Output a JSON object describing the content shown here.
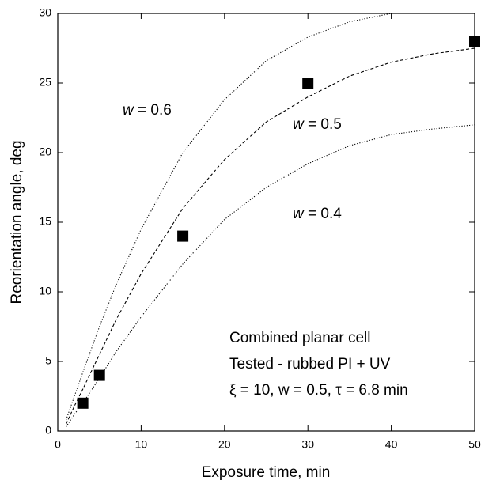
{
  "chart_data": {
    "type": "scatter",
    "x_label": "Exposure time, min",
    "y_label": "Reorientation angle, deg",
    "x": [
      3,
      5,
      15,
      30,
      50
    ],
    "values": [
      2,
      4,
      14,
      25,
      28
    ],
    "color": "#000000",
    "xlim": [
      0,
      50
    ],
    "ylim": [
      0,
      30
    ],
    "xticks": [
      0,
      10,
      20,
      30,
      40,
      50
    ],
    "yticks": [
      0,
      5,
      10,
      15,
      20,
      25,
      30
    ],
    "curves": [
      {
        "name": "w = 0.6",
        "style": "dotted",
        "x": [
          1,
          2,
          3,
          5,
          7,
          10,
          15,
          20,
          25,
          30,
          35,
          40
        ],
        "values": [
          0.8,
          2.5,
          4.2,
          7.5,
          10.5,
          14.5,
          20,
          23.8,
          26.6,
          28.3,
          29.4,
          30
        ]
      },
      {
        "name": "w = 0.5",
        "style": "dashed",
        "x": [
          1,
          2,
          3,
          5,
          7,
          10,
          15,
          20,
          25,
          30,
          35,
          40,
          45,
          50
        ],
        "values": [
          0.5,
          1.8,
          3.0,
          5.5,
          8,
          11.3,
          16,
          19.5,
          22.2,
          24,
          25.5,
          26.5,
          27.1,
          27.5
        ]
      },
      {
        "name": "w = 0.4",
        "style": "dotted",
        "x": [
          1,
          2,
          3,
          5,
          7,
          10,
          15,
          20,
          25,
          30,
          35,
          40,
          45,
          50
        ],
        "values": [
          0.3,
          1.2,
          2.0,
          3.8,
          5.7,
          8.2,
          12,
          15.2,
          17.5,
          19.2,
          20.5,
          21.3,
          21.7,
          22
        ]
      }
    ],
    "annotations": [
      "Combined planar cell",
      "Tested - rubbed PI + UV",
      "ξ  = 10, w = 0.5, τ = 6.8 min"
    ]
  }
}
